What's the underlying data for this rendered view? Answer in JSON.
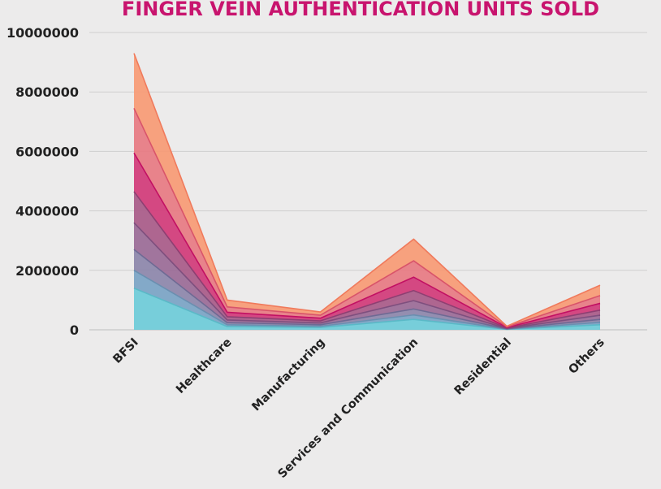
{
  "chart_data": {
    "type": "area",
    "stacked": true,
    "title": "FINGER VEIN AUTHENTICATION UNITS SOLD",
    "xlabel": "",
    "ylabel": "",
    "categories": [
      "BFSI",
      "Healthcare",
      "Manufacturing",
      "Services and Communication",
      "Residential",
      "Others"
    ],
    "ylim": [
      0,
      10000000
    ],
    "yticks": [
      0,
      2000000,
      4000000,
      6000000,
      8000000,
      10000000
    ],
    "ytick_labels": [
      "0",
      "2000000",
      "4000000",
      "6000000",
      "8000000",
      "10000000"
    ],
    "grid": true,
    "legend": "none",
    "series": [
      {
        "values": [
          1400000,
          110000,
          80000,
          350000,
          15000,
          170000
        ],
        "color": "#6ccbd8"
      },
      {
        "values": [
          600000,
          60000,
          40000,
          150000,
          8000,
          80000
        ],
        "color": "#7aa3c4"
      },
      {
        "values": [
          700000,
          70000,
          50000,
          200000,
          9000,
          100000
        ],
        "color": "#8c86aa"
      },
      {
        "values": [
          900000,
          90000,
          60000,
          280000,
          12000,
          140000
        ],
        "color": "#9a6a96"
      },
      {
        "values": [
          1050000,
          110000,
          70000,
          340000,
          14000,
          170000
        ],
        "color": "#a85a88"
      },
      {
        "values": [
          1300000,
          150000,
          90000,
          450000,
          18000,
          230000
        ],
        "color": "#d13a78"
      },
      {
        "values": [
          1500000,
          180000,
          100000,
          550000,
          20000,
          260000
        ],
        "color": "#e77a82"
      },
      {
        "values": [
          1850000,
          230000,
          110000,
          730000,
          24000,
          350000
        ],
        "color": "#f79a74"
      }
    ],
    "line_colors": [
      "#5ab9c7",
      "#6a8fb0",
      "#6e6a94",
      "#7e4f7e",
      "#8e3f72",
      "#c21063",
      "#d9546a",
      "#f07a5c"
    ]
  }
}
